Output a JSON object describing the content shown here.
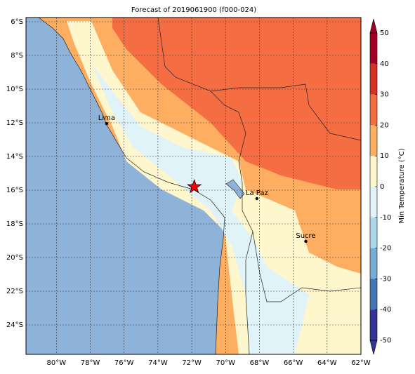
{
  "map": {
    "title": "Forecast of 2019061900 (f000-024)",
    "xlim": [
      -81.8,
      -62
    ],
    "ylim": [
      -25.75,
      -5.75
    ],
    "xticks": [
      {
        "value": -80,
        "label": "80°W"
      },
      {
        "value": -78,
        "label": "78°W"
      },
      {
        "value": -76,
        "label": "76°W"
      },
      {
        "value": -74,
        "label": "74°W"
      },
      {
        "value": -72,
        "label": "72°W"
      },
      {
        "value": -70,
        "label": "70°W"
      },
      {
        "value": -68,
        "label": "68°W"
      },
      {
        "value": -66,
        "label": "66°W"
      },
      {
        "value": -64,
        "label": "64°W"
      },
      {
        "value": -62,
        "label": "62°W"
      }
    ],
    "yticks": [
      {
        "value": -6,
        "label": "6°S"
      },
      {
        "value": -8,
        "label": "8°S"
      },
      {
        "value": -10,
        "label": "10°S"
      },
      {
        "value": -12,
        "label": "12°S"
      },
      {
        "value": -14,
        "label": "14°S"
      },
      {
        "value": -16,
        "label": "16°S"
      },
      {
        "value": -18,
        "label": "18°S"
      },
      {
        "value": -20,
        "label": "20°S"
      },
      {
        "value": -22,
        "label": "22°S"
      },
      {
        "value": -24,
        "label": "24°S"
      }
    ],
    "cities": [
      {
        "name": "Lima",
        "lon": -77.03,
        "lat": -12.05
      },
      {
        "name": "La Paz",
        "lon": -68.15,
        "lat": -16.5
      },
      {
        "name": "Sucre",
        "lon": -65.26,
        "lat": -19.04
      }
    ],
    "marker": {
      "lon": -71.85,
      "lat": -15.8,
      "color": "#ff0000"
    },
    "colorbar": {
      "label": "Min Temperature (°C)",
      "levels": [
        -50,
        -40,
        -30,
        -20,
        -10,
        0,
        10,
        20,
        30,
        40,
        50
      ],
      "colors": [
        "#313695",
        "#4575b4",
        "#74add1",
        "#abd9e9",
        "#e0f3f8",
        "#fef6cc",
        "#fdae61",
        "#f46d43",
        "#d73027",
        "#a50026"
      ],
      "ticks": [
        -50,
        -40,
        -30,
        -20,
        -10,
        0,
        10,
        20,
        30,
        40,
        50
      ]
    }
  }
}
